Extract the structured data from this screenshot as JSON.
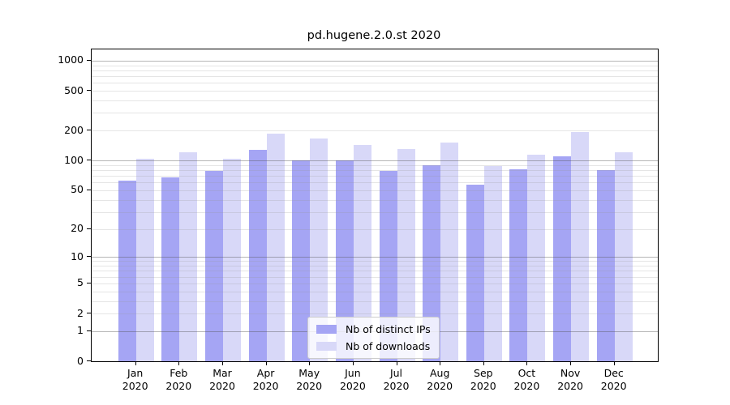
{
  "title": "pd.hugene.2.0.st 2020",
  "colors": {
    "distinct_ips": "#a5a5f4",
    "downloads": "#d8d8f8",
    "grid_major": "rgba(80,80,80,0.42)",
    "grid_minor": "rgba(150,150,150,0.25)",
    "spine": "#000000",
    "background": "#ffffff"
  },
  "legend": {
    "items": [
      {
        "label": "Nb of distinct IPs"
      },
      {
        "label": "Nb of downloads"
      }
    ]
  },
  "chart_data": {
    "type": "bar",
    "title": "pd.hugene.2.0.st 2020",
    "categories": [
      "Jan 2020",
      "Feb 2020",
      "Mar 2020",
      "Apr 2020",
      "May 2020",
      "Jun 2020",
      "Jul 2020",
      "Aug 2020",
      "Sep 2020",
      "Oct 2020",
      "Nov 2020",
      "Dec 2020"
    ],
    "series": [
      {
        "name": "Nb of distinct IPs",
        "color": "#a5a5f4",
        "values": [
          62,
          67,
          79,
          128,
          101,
          101,
          78,
          90,
          57,
          81,
          110,
          80
        ]
      },
      {
        "name": "Nb of downloads",
        "color": "#d8d8f8",
        "values": [
          105,
          120,
          105,
          187,
          166,
          142,
          131,
          152,
          88,
          114,
          192,
          121
        ]
      }
    ],
    "y_ticks": [
      0,
      1,
      2,
      5,
      10,
      20,
      50,
      100,
      200,
      500,
      1000
    ],
    "y_scale": "log10(1+y)",
    "ylim": [
      0,
      1295
    ],
    "xlabel": "",
    "ylabel": "",
    "grid": true,
    "legend_position": "lower center"
  }
}
